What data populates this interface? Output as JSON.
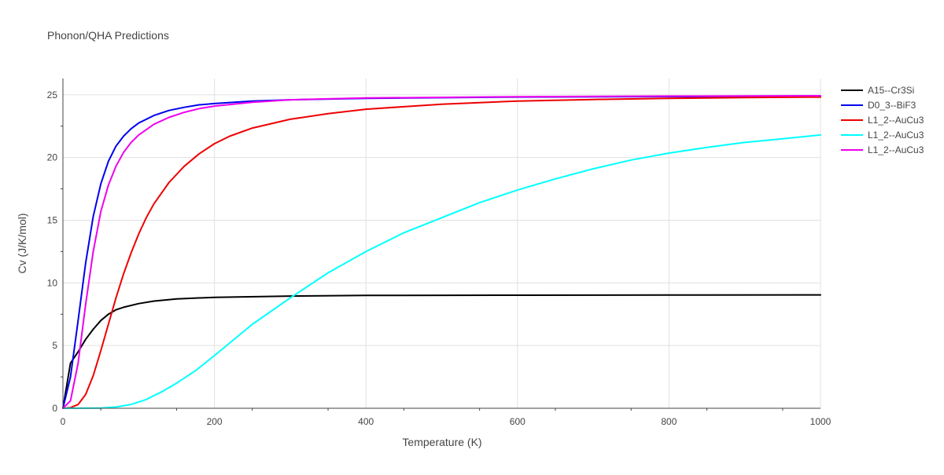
{
  "chart_data": {
    "type": "line",
    "title": "Phonon/QHA Predictions",
    "xlabel": "Temperature (K)",
    "ylabel": "Cv (J/K/mol)",
    "xlim": [
      0,
      1000
    ],
    "ylim": [
      0,
      26.3
    ],
    "x_ticks": [
      0,
      200,
      400,
      600,
      800,
      1000
    ],
    "y_ticks": [
      0,
      5,
      10,
      15,
      20,
      25
    ],
    "grid": true,
    "legend_position": "top-right",
    "series": [
      {
        "name": "A15--Cr3Si",
        "color": "#000000",
        "points": [
          [
            0,
            0
          ],
          [
            5,
            1.8
          ],
          [
            10,
            3.6
          ],
          [
            20,
            4.5
          ],
          [
            30,
            5.5
          ],
          [
            40,
            6.3
          ],
          [
            50,
            7.0
          ],
          [
            60,
            7.5
          ],
          [
            70,
            7.85
          ],
          [
            80,
            8.05
          ],
          [
            100,
            8.35
          ],
          [
            120,
            8.55
          ],
          [
            150,
            8.72
          ],
          [
            200,
            8.85
          ],
          [
            300,
            8.95
          ],
          [
            400,
            9.0
          ],
          [
            600,
            9.02
          ],
          [
            800,
            9.03
          ],
          [
            1000,
            9.04
          ]
        ]
      },
      {
        "name": "D0_3--BiF3",
        "color": "#0000ee",
        "points": [
          [
            0,
            0
          ],
          [
            10,
            2.5
          ],
          [
            20,
            7.0
          ],
          [
            30,
            11.6
          ],
          [
            40,
            15.3
          ],
          [
            50,
            17.9
          ],
          [
            60,
            19.7
          ],
          [
            70,
            20.9
          ],
          [
            80,
            21.7
          ],
          [
            90,
            22.3
          ],
          [
            100,
            22.75
          ],
          [
            120,
            23.35
          ],
          [
            140,
            23.75
          ],
          [
            160,
            24.0
          ],
          [
            180,
            24.2
          ],
          [
            200,
            24.3
          ],
          [
            250,
            24.5
          ],
          [
            300,
            24.6
          ],
          [
            400,
            24.72
          ],
          [
            600,
            24.82
          ],
          [
            800,
            24.86
          ],
          [
            1000,
            24.88
          ]
        ]
      },
      {
        "name": "L1_2--AuCu3",
        "color": "#ee0000",
        "points": [
          [
            0,
            0
          ],
          [
            10,
            0.05
          ],
          [
            20,
            0.3
          ],
          [
            30,
            1.1
          ],
          [
            40,
            2.6
          ],
          [
            50,
            4.6
          ],
          [
            60,
            6.7
          ],
          [
            70,
            8.8
          ],
          [
            80,
            10.7
          ],
          [
            90,
            12.4
          ],
          [
            100,
            13.9
          ],
          [
            110,
            15.2
          ],
          [
            120,
            16.3
          ],
          [
            140,
            18.0
          ],
          [
            160,
            19.3
          ],
          [
            180,
            20.3
          ],
          [
            200,
            21.1
          ],
          [
            220,
            21.7
          ],
          [
            250,
            22.35
          ],
          [
            300,
            23.05
          ],
          [
            350,
            23.5
          ],
          [
            400,
            23.85
          ],
          [
            500,
            24.25
          ],
          [
            600,
            24.5
          ],
          [
            700,
            24.63
          ],
          [
            800,
            24.72
          ],
          [
            900,
            24.78
          ],
          [
            1000,
            24.82
          ]
        ]
      },
      {
        "name": "L1_2--AuCu3",
        "color": "#00ffff",
        "points": [
          [
            0,
            0
          ],
          [
            50,
            0.02
          ],
          [
            70,
            0.1
          ],
          [
            90,
            0.3
          ],
          [
            110,
            0.7
          ],
          [
            130,
            1.3
          ],
          [
            150,
            2.0
          ],
          [
            175,
            3.0
          ],
          [
            200,
            4.2
          ],
          [
            250,
            6.7
          ],
          [
            300,
            8.8
          ],
          [
            350,
            10.8
          ],
          [
            400,
            12.5
          ],
          [
            450,
            14.0
          ],
          [
            500,
            15.2
          ],
          [
            550,
            16.4
          ],
          [
            600,
            17.4
          ],
          [
            650,
            18.3
          ],
          [
            700,
            19.1
          ],
          [
            750,
            19.8
          ],
          [
            800,
            20.35
          ],
          [
            850,
            20.8
          ],
          [
            900,
            21.2
          ],
          [
            950,
            21.5
          ],
          [
            1000,
            21.8
          ]
        ]
      },
      {
        "name": "L1_2--AuCu3",
        "color": "#ee00ee",
        "points": [
          [
            0,
            0
          ],
          [
            10,
            0.6
          ],
          [
            20,
            3.6
          ],
          [
            30,
            8.3
          ],
          [
            40,
            12.5
          ],
          [
            50,
            15.7
          ],
          [
            60,
            17.8
          ],
          [
            70,
            19.3
          ],
          [
            80,
            20.4
          ],
          [
            90,
            21.2
          ],
          [
            100,
            21.8
          ],
          [
            120,
            22.65
          ],
          [
            140,
            23.2
          ],
          [
            160,
            23.6
          ],
          [
            180,
            23.9
          ],
          [
            200,
            24.1
          ],
          [
            250,
            24.4
          ],
          [
            300,
            24.6
          ],
          [
            400,
            24.75
          ],
          [
            600,
            24.85
          ],
          [
            800,
            24.9
          ],
          [
            1000,
            24.92
          ]
        ]
      }
    ]
  }
}
